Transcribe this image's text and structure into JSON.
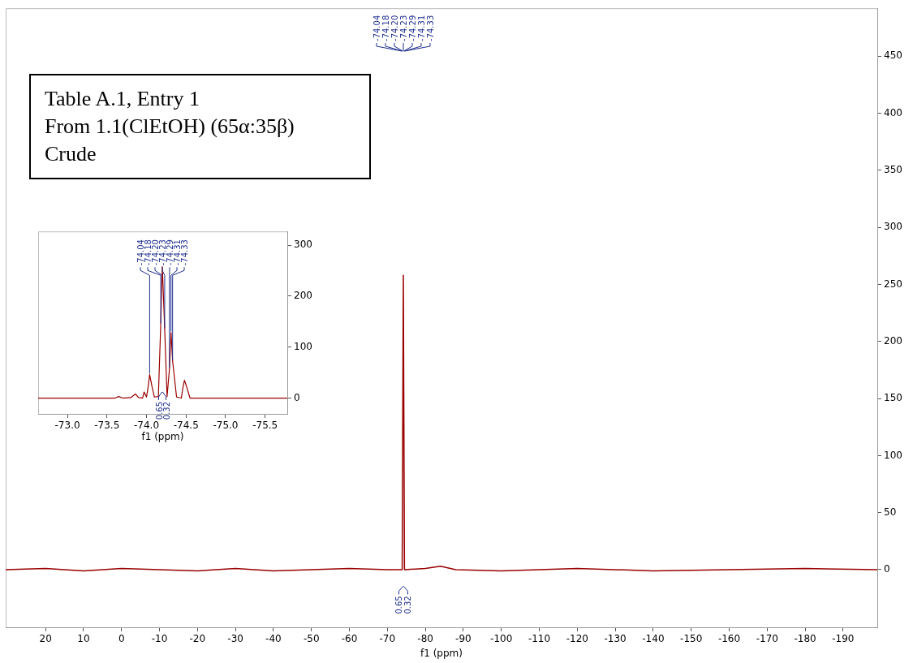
{
  "chart_data": [
    {
      "type": "line",
      "xlabel": "f1 (ppm)",
      "xlim": [
        30.5,
        -199
      ],
      "ylim": [
        -50.5,
        492
      ],
      "xticks": [
        20,
        10,
        0,
        -10,
        -20,
        -30,
        -40,
        -50,
        -60,
        -70,
        -80,
        -90,
        -100,
        -110,
        -120,
        -130,
        -140,
        -150,
        -160,
        -170,
        -180,
        -190
      ],
      "yticks": [
        0,
        50,
        100,
        150,
        200,
        250,
        300,
        350,
        400,
        450
      ],
      "grid": false,
      "legend": false,
      "marker": "none",
      "series": [
        {
          "color": "#990000",
          "x": [
            30.5,
            20,
            10,
            0,
            -10,
            -20,
            -30,
            -40,
            -50,
            -60,
            -70,
            -73.9,
            -74.2,
            -74.5,
            -80,
            -84,
            -88,
            -100,
            -120,
            -140,
            -160,
            -180,
            -199
          ],
          "values": [
            0,
            1,
            -1,
            1,
            0,
            -1,
            1,
            -1,
            0,
            1,
            0,
            0,
            258,
            0,
            1,
            3,
            0,
            -1,
            1,
            -1,
            0,
            1,
            0
          ]
        }
      ],
      "annotations": [
        "Table A.1, Entry 1\nFrom 1.1(ClEtOH) (65α:35β)\nCrude",
        "-74.04",
        "-74.18",
        "-74.20",
        "-74.23",
        "-74.29",
        "-74.31",
        "-74.33",
        "0.65",
        "0.32"
      ]
    },
    {
      "type": "line",
      "xlabel": "f1 (ppm)",
      "xlim": [
        -72.63,
        -75.78
      ],
      "ylim": [
        -31,
        327
      ],
      "xticks": [
        {
          "value": -73,
          "label": "-73.0"
        },
        {
          "value": -73.5,
          "label": "-73.5"
        },
        {
          "value": -74,
          "label": "-74.0"
        },
        {
          "value": -74.5,
          "label": "-74.5"
        },
        {
          "value": -75,
          "label": "-75.0"
        },
        {
          "value": -75.5,
          "label": "-75.5"
        }
      ],
      "yticks": [
        0,
        100,
        200,
        300
      ],
      "grid": false,
      "legend": false,
      "marker": "none",
      "series": [
        {
          "color": "#990000",
          "x": [
            -72.63,
            -73.3,
            -73.6,
            -73.65,
            -73.7,
            -73.8,
            -73.86,
            -73.9,
            -73.95,
            -73.97,
            -74.0,
            -74.02,
            -74.04,
            -74.07,
            -74.1,
            -74.15,
            -74.18,
            -74.2,
            -74.23,
            -74.26,
            -74.29,
            -74.31,
            -74.33,
            -74.38,
            -74.44,
            -74.46,
            -74.48,
            -74.51,
            -74.55,
            -75.0,
            -75.78
          ],
          "values": [
            0,
            0,
            0,
            3,
            0,
            1,
            8,
            1,
            0,
            12,
            2,
            21,
            46,
            22,
            2,
            3,
            145,
            258,
            135,
            3,
            57,
            129,
            73,
            2,
            0,
            20,
            35,
            21,
            0,
            0,
            0
          ]
        }
      ],
      "annotations": [
        {
          "text": "-74.04",
          "x": -74.04,
          "y": 46
        },
        {
          "text": "-74.18",
          "x": -74.18,
          "y": 145
        },
        {
          "text": "-74.20",
          "x": -74.2,
          "y": 258
        },
        {
          "text": "-74.23",
          "x": -74.23,
          "y": 135
        },
        {
          "text": "-74.29",
          "x": -74.29,
          "y": 57
        },
        {
          "text": "-74.31",
          "x": -74.31,
          "y": 129
        },
        {
          "text": "-74.33",
          "x": -74.33,
          "y": 73
        },
        "0.65",
        "0.32"
      ]
    }
  ]
}
